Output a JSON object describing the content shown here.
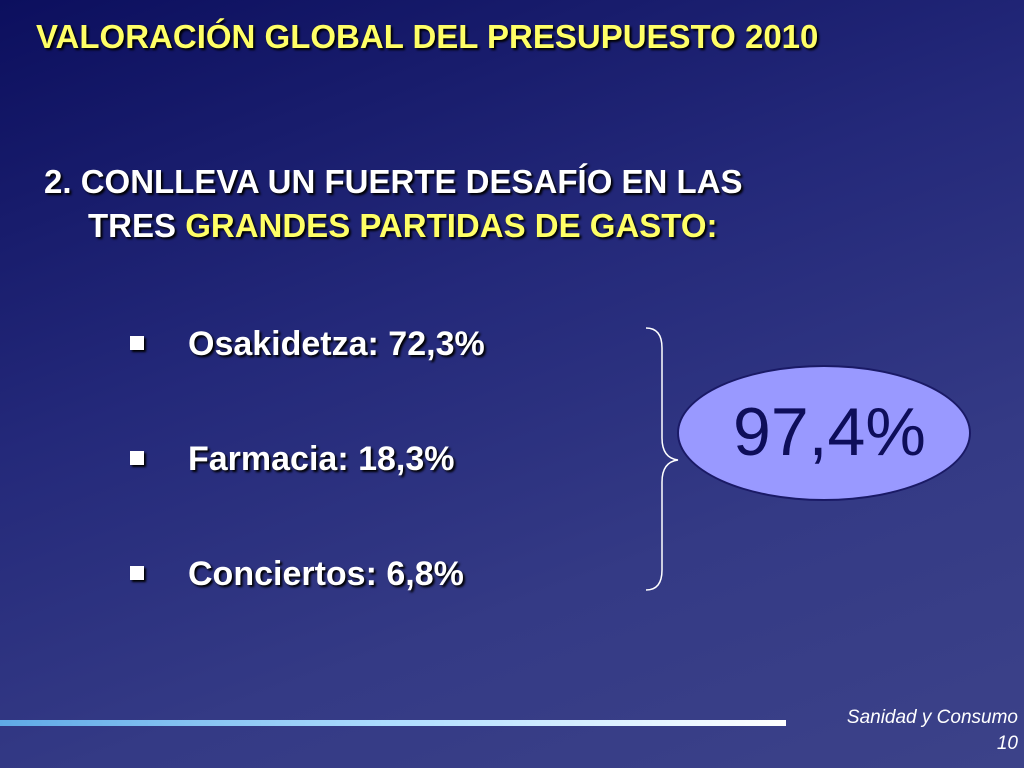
{
  "slide": {
    "title": "VALORACIÓN GLOBAL DEL PRESUPUESTO 2010",
    "subtitle": {
      "line1": "2. CONLLEVA UN FUERTE DESAFÍO EN LAS",
      "line2_white": "TRES",
      "line2_highlight": "GRANDES PARTIDAS DE GASTO:"
    },
    "bullets": [
      {
        "label": "Osakidetza:  72,3%"
      },
      {
        "label": "Farmacia: 18,3%"
      },
      {
        "label": "Conciertos: 6,8%"
      }
    ],
    "total": "97,4%",
    "footer": {
      "section": "Sanidad y Consumo",
      "page_number": "10"
    }
  },
  "colors": {
    "title": "#ffff66",
    "text": "#ffffff",
    "ellipse_fill": "#9999ff",
    "total_text": "#0e0e5a"
  }
}
